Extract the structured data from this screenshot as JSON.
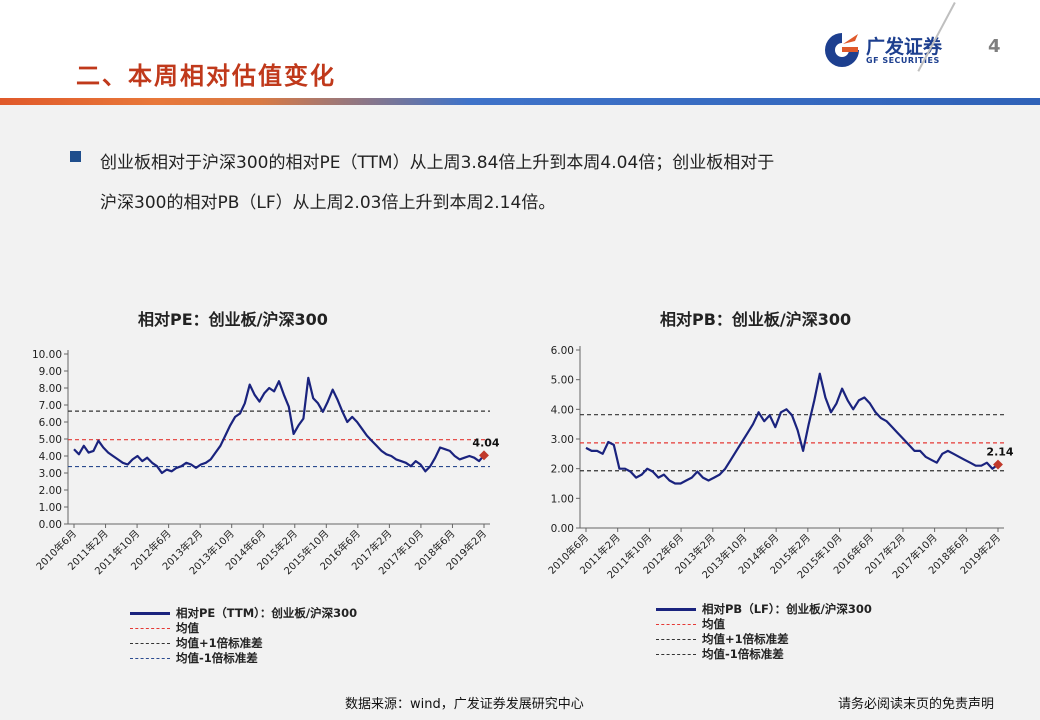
{
  "header": {
    "section_title": "二、本周相对估值变化",
    "page_number": "4"
  },
  "logo": {
    "cn": "广发证券",
    "en": "GF SECURITIES"
  },
  "colors": {
    "accent_red": "#c0391b",
    "brand_blue": "#1d3f8f",
    "series_navy": "#1a237e",
    "mean_red": "#e53935",
    "plus_black": "#333333",
    "minus_blue": "#2b4b8f"
  },
  "summary": {
    "line1": "创业板相对于沪深300的相对PE（TTM）从上周3.84倍上升到本周4.04倍；创业板相对于",
    "line2": "沪深300的相对PB（LF）从上周2.03倍上升到本周2.14倍。"
  },
  "chart_data": [
    {
      "type": "line",
      "title": "相对PE：创业板/沪深300",
      "ylim": [
        0,
        10
      ],
      "y_ticks": [
        "0.00",
        "1.00",
        "2.00",
        "3.00",
        "4.00",
        "5.00",
        "6.00",
        "7.00",
        "8.00",
        "9.00",
        "10.00"
      ],
      "x_ticks": [
        "2010年6月",
        "2011年2月",
        "2011年10月",
        "2012年6月",
        "2013年2月",
        "2013年10月",
        "2014年6月",
        "2015年2月",
        "2015年10月",
        "2016年6月",
        "2017年2月",
        "2017年10月",
        "2018年6月",
        "2019年2月"
      ],
      "series": [
        {
          "name": "相对PE（TTM）：创业板/沪深300",
          "values": [
            4.4,
            4.1,
            4.6,
            4.2,
            4.3,
            4.9,
            4.5,
            4.2,
            4.0,
            3.8,
            3.6,
            3.5,
            3.8,
            4.0,
            3.7,
            3.9,
            3.6,
            3.4,
            3.0,
            3.2,
            3.1,
            3.3,
            3.4,
            3.6,
            3.5,
            3.3,
            3.5,
            3.6,
            3.8,
            4.2,
            4.6,
            5.2,
            5.8,
            6.3,
            6.5,
            7.1,
            8.2,
            7.6,
            7.2,
            7.7,
            8.0,
            7.8,
            8.4,
            7.6,
            6.9,
            5.3,
            5.8,
            6.2,
            8.6,
            7.4,
            7.1,
            6.6,
            7.2,
            7.9,
            7.3,
            6.6,
            6.0,
            6.3,
            6.0,
            5.6,
            5.2,
            4.9,
            4.6,
            4.3,
            4.1,
            4.0,
            3.8,
            3.7,
            3.6,
            3.4,
            3.7,
            3.5,
            3.1,
            3.4,
            3.9,
            4.5,
            4.4,
            4.3,
            4.0,
            3.8,
            3.9,
            4.0,
            3.9,
            3.7,
            4.04
          ]
        }
      ],
      "mean": 4.96,
      "mean_plus_1sd": 6.64,
      "mean_minus_1sd": 3.38,
      "end_label": "4.04",
      "legend": [
        "相对PE（TTM）：创业板/沪深300",
        "均值",
        "均值+1倍标准差",
        "均值-1倍标准差"
      ]
    },
    {
      "type": "line",
      "title": "相对PB：创业板/沪深300",
      "ylim": [
        0,
        6
      ],
      "y_ticks": [
        "0.00",
        "1.00",
        "2.00",
        "3.00",
        "4.00",
        "5.00",
        "6.00"
      ],
      "x_ticks": [
        "2010年6月",
        "2011年2月",
        "2011年10月",
        "2012年6月",
        "2013年2月",
        "2013年10月",
        "2014年6月",
        "2015年2月",
        "2015年10月",
        "2016年6月",
        "2017年2月",
        "2017年10月",
        "2018年6月",
        "2019年2月"
      ],
      "series": [
        {
          "name": "相对PB（LF）：创业板/沪深300",
          "values": [
            2.7,
            2.6,
            2.6,
            2.5,
            2.9,
            2.8,
            2.0,
            2.0,
            1.9,
            1.7,
            1.8,
            2.0,
            1.9,
            1.7,
            1.8,
            1.6,
            1.5,
            1.5,
            1.6,
            1.7,
            1.9,
            1.7,
            1.6,
            1.7,
            1.8,
            2.0,
            2.3,
            2.6,
            2.9,
            3.2,
            3.5,
            3.9,
            3.6,
            3.8,
            3.4,
            3.9,
            4.0,
            3.8,
            3.3,
            2.6,
            3.5,
            4.3,
            5.2,
            4.4,
            3.9,
            4.2,
            4.7,
            4.3,
            4.0,
            4.3,
            4.4,
            4.2,
            3.9,
            3.7,
            3.6,
            3.4,
            3.2,
            3.0,
            2.8,
            2.6,
            2.6,
            2.4,
            2.3,
            2.2,
            2.5,
            2.6,
            2.5,
            2.4,
            2.3,
            2.2,
            2.1,
            2.1,
            2.2,
            2.0,
            2.14
          ]
        }
      ],
      "mean": 2.87,
      "mean_plus_1sd": 3.82,
      "mean_minus_1sd": 1.93,
      "end_label": "2.14",
      "legend": [
        "相对PB（LF）：创业板/沪深300",
        "均值",
        "均值+1倍标准差",
        "均值-1倍标准差"
      ]
    }
  ],
  "footer": {
    "source": "数据来源：wind，广发证券发展研究中心",
    "disclaimer": "请务必阅读末页的免责声明"
  }
}
